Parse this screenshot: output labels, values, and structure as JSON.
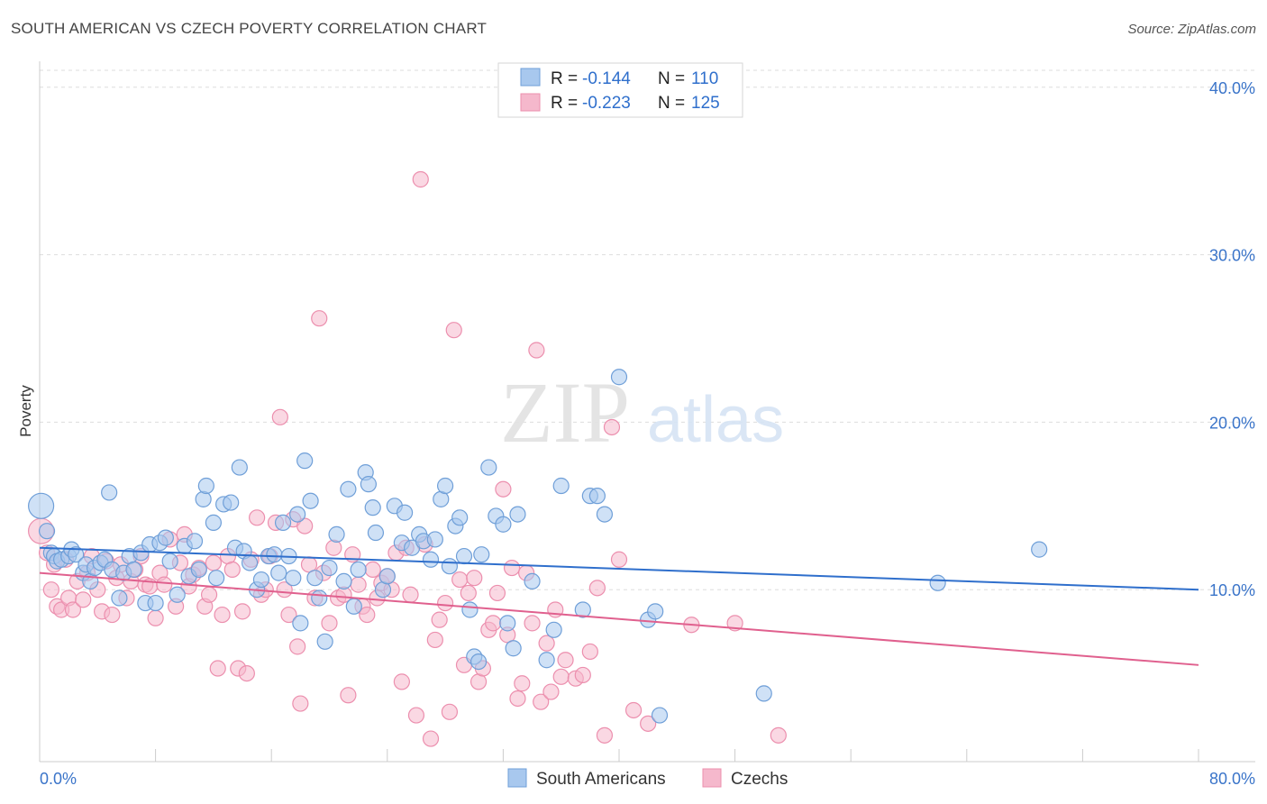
{
  "title": "SOUTH AMERICAN VS CZECH POVERTY CORRELATION CHART",
  "source": "Source: ZipAtlas.com",
  "watermark": {
    "zip": "ZIP",
    "atlas": "atlas"
  },
  "legend_top": [
    {
      "r_label": "R =",
      "r_value": "-0.144",
      "n_label": "N =",
      "n_value": "110"
    },
    {
      "r_label": "R =",
      "r_value": "-0.223",
      "n_label": "N =",
      "n_value": "125"
    }
  ],
  "colors": {
    "blue_fill": "#a8c8ee",
    "blue_stroke": "#6f9fd8",
    "blue_line": "#2f6fcc",
    "pink_fill": "#f5b8cc",
    "pink_stroke": "#ec8fae",
    "pink_line": "#e0608e",
    "axis_text": "#3a74c9",
    "grid": "#dddddd"
  },
  "chart_data": {
    "type": "scatter",
    "title": "SOUTH AMERICAN VS CZECH POVERTY CORRELATION CHART",
    "xlabel": "",
    "ylabel": "Poverty",
    "xlim": [
      0,
      80
    ],
    "ylim": [
      0,
      42
    ],
    "x_tick_labels": [
      "0.0%",
      "80.0%"
    ],
    "y_ticks": [
      10,
      20,
      30,
      40
    ],
    "y_tick_labels": [
      "10.0%",
      "20.0%",
      "30.0%",
      "40.0%"
    ],
    "legend": [
      "South Americans",
      "Czechs"
    ],
    "series": [
      {
        "name": "South Americans",
        "r": -0.144,
        "n": 110,
        "trend": {
          "x": [
            0,
            80
          ],
          "y": [
            12.5,
            10.0
          ]
        },
        "points": [
          [
            0.1,
            15.0
          ],
          [
            0.5,
            13.5
          ],
          [
            0.8,
            12.2
          ],
          [
            1.0,
            12.0
          ],
          [
            1.2,
            11.7
          ],
          [
            1.5,
            11.8
          ],
          [
            2.0,
            12.0
          ],
          [
            2.2,
            12.4
          ],
          [
            2.5,
            12.1
          ],
          [
            3.0,
            11.0
          ],
          [
            3.2,
            11.5
          ],
          [
            3.5,
            10.5
          ],
          [
            3.8,
            11.3
          ],
          [
            4.2,
            11.6
          ],
          [
            4.5,
            11.8
          ],
          [
            4.8,
            15.8
          ],
          [
            5.0,
            11.2
          ],
          [
            5.5,
            9.5
          ],
          [
            5.8,
            11.0
          ],
          [
            6.2,
            12.0
          ],
          [
            6.5,
            11.2
          ],
          [
            7.0,
            12.2
          ],
          [
            7.3,
            9.2
          ],
          [
            7.6,
            12.7
          ],
          [
            8.0,
            9.2
          ],
          [
            8.3,
            12.8
          ],
          [
            8.7,
            13.1
          ],
          [
            9.0,
            11.7
          ],
          [
            9.5,
            9.7
          ],
          [
            10.0,
            12.6
          ],
          [
            10.3,
            10.8
          ],
          [
            10.7,
            12.9
          ],
          [
            11.0,
            11.2
          ],
          [
            11.3,
            15.4
          ],
          [
            11.5,
            16.2
          ],
          [
            12.0,
            14.0
          ],
          [
            12.2,
            10.7
          ],
          [
            12.7,
            15.1
          ],
          [
            13.2,
            15.2
          ],
          [
            13.5,
            12.5
          ],
          [
            13.8,
            17.3
          ],
          [
            14.1,
            12.3
          ],
          [
            14.5,
            11.6
          ],
          [
            15.0,
            10.0
          ],
          [
            15.3,
            10.6
          ],
          [
            15.8,
            12.0
          ],
          [
            16.2,
            12.1
          ],
          [
            16.5,
            11.0
          ],
          [
            16.8,
            14.0
          ],
          [
            17.2,
            12.0
          ],
          [
            17.5,
            10.7
          ],
          [
            17.8,
            14.5
          ],
          [
            18.0,
            8.0
          ],
          [
            18.3,
            17.7
          ],
          [
            18.7,
            15.3
          ],
          [
            19.0,
            10.7
          ],
          [
            19.3,
            9.5
          ],
          [
            19.7,
            6.9
          ],
          [
            20.0,
            11.3
          ],
          [
            20.5,
            13.3
          ],
          [
            21.0,
            10.5
          ],
          [
            21.3,
            16.0
          ],
          [
            21.7,
            9.0
          ],
          [
            22.0,
            11.2
          ],
          [
            22.5,
            17.0
          ],
          [
            22.7,
            16.3
          ],
          [
            23.0,
            14.9
          ],
          [
            23.2,
            13.4
          ],
          [
            23.7,
            10.0
          ],
          [
            24.0,
            10.8
          ],
          [
            24.5,
            15.0
          ],
          [
            25.0,
            12.8
          ],
          [
            25.2,
            14.6
          ],
          [
            25.7,
            12.5
          ],
          [
            26.2,
            13.3
          ],
          [
            26.5,
            12.9
          ],
          [
            27.0,
            11.8
          ],
          [
            27.3,
            13.0
          ],
          [
            27.7,
            15.4
          ],
          [
            28.0,
            16.2
          ],
          [
            28.3,
            11.4
          ],
          [
            28.7,
            13.8
          ],
          [
            29.0,
            14.3
          ],
          [
            29.3,
            12.0
          ],
          [
            29.7,
            8.8
          ],
          [
            30.0,
            6.0
          ],
          [
            30.3,
            5.7
          ],
          [
            30.5,
            12.1
          ],
          [
            31.0,
            17.3
          ],
          [
            31.5,
            14.4
          ],
          [
            32.0,
            13.9
          ],
          [
            32.3,
            8.0
          ],
          [
            32.7,
            6.5
          ],
          [
            33.0,
            14.5
          ],
          [
            34.0,
            10.5
          ],
          [
            35.0,
            5.8
          ],
          [
            35.5,
            7.6
          ],
          [
            36.0,
            16.2
          ],
          [
            37.5,
            8.8
          ],
          [
            38.0,
            15.6
          ],
          [
            38.5,
            15.6
          ],
          [
            39.0,
            14.5
          ],
          [
            40.0,
            22.7
          ],
          [
            42.0,
            8.2
          ],
          [
            42.5,
            8.7
          ],
          [
            42.8,
            2.5
          ],
          [
            50.0,
            3.8
          ],
          [
            62.0,
            10.4
          ],
          [
            69.0,
            12.4
          ]
        ]
      },
      {
        "name": "Czechs",
        "r": -0.223,
        "n": 125,
        "trend": {
          "x": [
            0,
            80
          ],
          "y": [
            11.0,
            5.5
          ]
        },
        "points": [
          [
            0.1,
            13.5
          ],
          [
            0.5,
            12.2
          ],
          [
            0.8,
            10.0
          ],
          [
            1.0,
            11.5
          ],
          [
            1.2,
            9.0
          ],
          [
            1.5,
            8.8
          ],
          [
            1.8,
            11.8
          ],
          [
            2.0,
            9.5
          ],
          [
            2.3,
            8.8
          ],
          [
            2.6,
            10.5
          ],
          [
            3.0,
            9.4
          ],
          [
            3.3,
            11.0
          ],
          [
            3.6,
            12.0
          ],
          [
            4.0,
            10.0
          ],
          [
            4.3,
            8.7
          ],
          [
            4.6,
            11.7
          ],
          [
            5.0,
            8.5
          ],
          [
            5.3,
            10.7
          ],
          [
            5.6,
            11.5
          ],
          [
            6.0,
            9.5
          ],
          [
            6.3,
            10.5
          ],
          [
            6.6,
            11.2
          ],
          [
            7.0,
            12.0
          ],
          [
            7.3,
            10.3
          ],
          [
            7.6,
            10.2
          ],
          [
            8.0,
            8.3
          ],
          [
            8.3,
            11.0
          ],
          [
            8.6,
            10.3
          ],
          [
            9.0,
            13.0
          ],
          [
            9.4,
            9.0
          ],
          [
            9.7,
            11.6
          ],
          [
            10.0,
            13.3
          ],
          [
            10.3,
            10.2
          ],
          [
            10.6,
            10.9
          ],
          [
            11.0,
            11.3
          ],
          [
            11.4,
            9.0
          ],
          [
            11.7,
            9.7
          ],
          [
            12.0,
            11.6
          ],
          [
            12.3,
            5.3
          ],
          [
            12.6,
            8.5
          ],
          [
            13.0,
            12.0
          ],
          [
            13.3,
            11.2
          ],
          [
            13.7,
            5.3
          ],
          [
            14.0,
            8.7
          ],
          [
            14.3,
            5.0
          ],
          [
            14.6,
            11.8
          ],
          [
            15.0,
            14.3
          ],
          [
            15.3,
            9.7
          ],
          [
            15.6,
            10.0
          ],
          [
            15.9,
            12.0
          ],
          [
            16.3,
            14.0
          ],
          [
            16.6,
            20.3
          ],
          [
            16.9,
            10.0
          ],
          [
            17.2,
            8.5
          ],
          [
            17.5,
            14.2
          ],
          [
            17.8,
            6.6
          ],
          [
            18.0,
            3.2
          ],
          [
            18.3,
            13.8
          ],
          [
            18.6,
            11.5
          ],
          [
            19.0,
            9.5
          ],
          [
            19.3,
            26.2
          ],
          [
            19.6,
            11.0
          ],
          [
            20.0,
            8.0
          ],
          [
            20.3,
            12.5
          ],
          [
            20.6,
            9.5
          ],
          [
            21.0,
            9.7
          ],
          [
            21.3,
            3.7
          ],
          [
            21.6,
            12.1
          ],
          [
            22.0,
            10.3
          ],
          [
            22.3,
            9.0
          ],
          [
            22.6,
            8.5
          ],
          [
            23.0,
            11.2
          ],
          [
            23.3,
            9.5
          ],
          [
            23.6,
            10.4
          ],
          [
            24.0,
            10.8
          ],
          [
            24.3,
            10.0
          ],
          [
            24.6,
            12.2
          ],
          [
            25.0,
            4.5
          ],
          [
            25.3,
            12.5
          ],
          [
            25.6,
            9.7
          ],
          [
            26.0,
            2.5
          ],
          [
            26.3,
            34.5
          ],
          [
            26.6,
            12.7
          ],
          [
            27.0,
            1.1
          ],
          [
            27.3,
            7.0
          ],
          [
            27.6,
            8.2
          ],
          [
            28.0,
            9.2
          ],
          [
            28.3,
            2.7
          ],
          [
            28.6,
            25.5
          ],
          [
            29.0,
            10.6
          ],
          [
            29.3,
            5.5
          ],
          [
            29.6,
            9.8
          ],
          [
            30.0,
            10.7
          ],
          [
            30.3,
            4.5
          ],
          [
            30.6,
            5.3
          ],
          [
            31.0,
            7.6
          ],
          [
            31.3,
            8.0
          ],
          [
            31.6,
            9.8
          ],
          [
            32.0,
            16.0
          ],
          [
            32.3,
            7.3
          ],
          [
            32.6,
            11.3
          ],
          [
            33.0,
            3.5
          ],
          [
            33.3,
            4.4
          ],
          [
            33.6,
            11.0
          ],
          [
            34.0,
            8.0
          ],
          [
            34.3,
            24.3
          ],
          [
            34.6,
            3.3
          ],
          [
            35.0,
            6.8
          ],
          [
            35.3,
            3.9
          ],
          [
            35.6,
            8.8
          ],
          [
            36.0,
            4.8
          ],
          [
            36.3,
            5.8
          ],
          [
            37.0,
            4.7
          ],
          [
            37.5,
            4.9
          ],
          [
            38.0,
            6.3
          ],
          [
            38.5,
            10.1
          ],
          [
            39.0,
            1.3
          ],
          [
            39.5,
            19.7
          ],
          [
            40.0,
            11.8
          ],
          [
            41.0,
            2.8
          ],
          [
            42.0,
            2.0
          ],
          [
            45.0,
            7.9
          ],
          [
            48.0,
            8.0
          ],
          [
            51.0,
            1.3
          ]
        ]
      }
    ]
  }
}
